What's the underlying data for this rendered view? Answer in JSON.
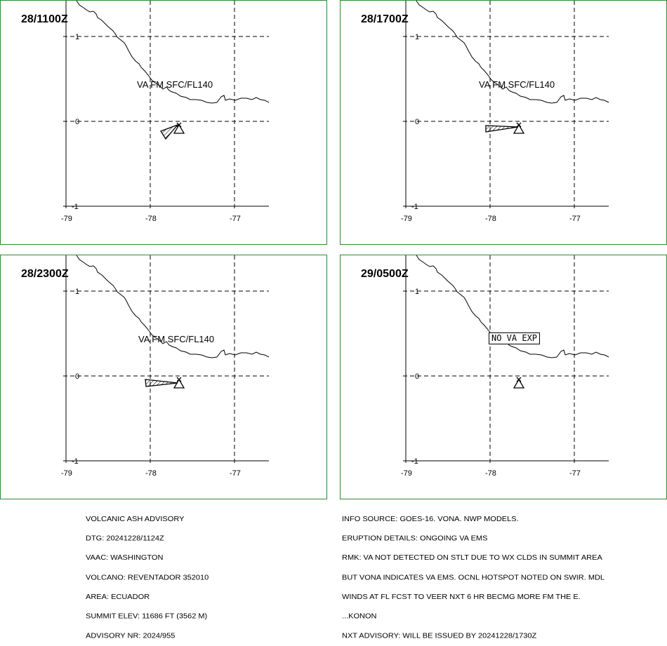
{
  "panels": [
    {
      "id": "p1",
      "title": "28/1100Z",
      "label": "VA FM SFC/FL140",
      "ash": "wedge_down"
    },
    {
      "id": "p2",
      "title": "28/1700Z",
      "label": "VA FM SFC/FL140",
      "ash": "flat"
    },
    {
      "id": "p3",
      "title": "28/2300Z",
      "label": "VA FM SFC/FL140",
      "ash": "flat_long"
    },
    {
      "id": "p4",
      "title": "29/0500Z",
      "label": "NO VA EXP",
      "ash": "none"
    }
  ],
  "axes": {
    "lat_ticks": [
      "1",
      "0",
      "-1"
    ],
    "lon_ticks": [
      "-79",
      "-78",
      "-77"
    ]
  },
  "advisory_left": [
    "VOLCANIC ASH ADVISORY",
    "DTG: 20241228/1124Z",
    "VAAC: WASHINGTON",
    "VOLCANO: REVENTADOR 352010",
    "AREA: ECUADOR",
    "SUMMIT ELEV: 11686 FT (3562 M)",
    "ADVISORY NR: 2024/955"
  ],
  "advisory_right": [
    "INFO SOURCE: GOES-16. VONA. NWP MODELS.",
    "ERUPTION DETAILS: ONGOING VA EMS",
    "RMK: VA NOT DETECTED ON STLT DUE TO WX CLDS IN SUMMIT AREA",
    "BUT VONA INDICATES VA EMS. OCNL HOTSPOT NOTED ON SWIR. MDL",
    "WINDS AT FL FCST TO VEER NXT 6 HR BECMG MORE FM THE E.",
    "...KONON",
    "NXT ADVISORY: WILL BE ISSUED BY 20241228/1730Z"
  ],
  "colors": {
    "panel_border": "#2e8b2e"
  }
}
